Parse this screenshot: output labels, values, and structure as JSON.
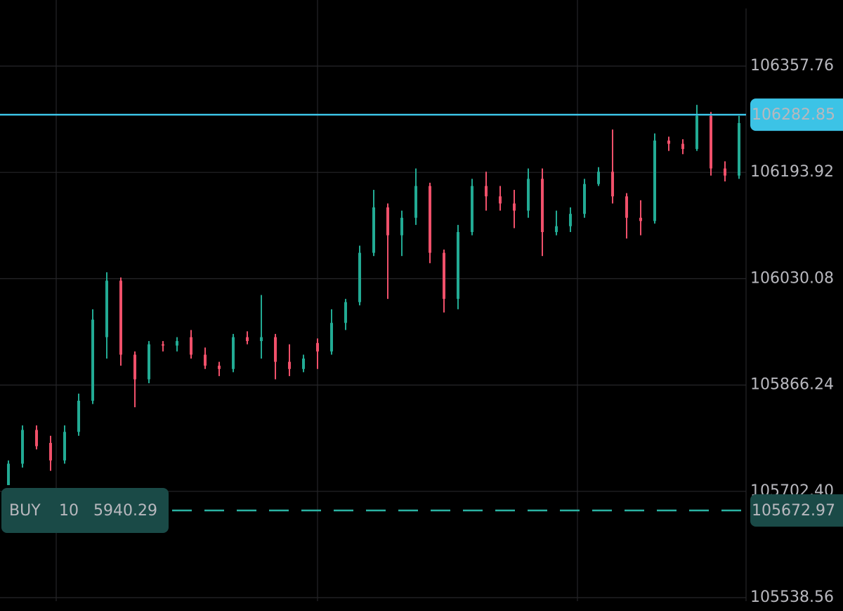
{
  "chart_data": {
    "type": "candlestick",
    "up_color": "#22ab94",
    "down_color": "#f0506a",
    "grid": true,
    "ylim": [
      105517.97,
      106459.62
    ],
    "yticks": [
      106357.76,
      106193.92,
      106030.08,
      105866.24,
      {
        "value": 105702.4,
        "label": "105702.40"
      },
      105538.56
    ],
    "open": [
      105712,
      105745,
      105797,
      105777,
      105750,
      105794,
      105842,
      105940,
      106027,
      105913,
      105875,
      105929,
      105927,
      105940,
      105913,
      105896,
      105891,
      105940,
      105934,
      105940,
      105902,
      105891,
      105931,
      105918,
      105962,
      105994,
      106070,
      106140,
      106097,
      106124,
      106173,
      106070,
      105999,
      106102,
      106173,
      106157,
      106146,
      106135,
      106184,
      106102,
      106111,
      106130,
      106176,
      106195,
      106157,
      106124,
      106119,
      106243,
      106238,
      106230,
      106281,
      106200,
      106189
    ],
    "high": [
      105750,
      105804,
      105804,
      105788,
      105804,
      105853,
      105983,
      106040,
      106032,
      105918,
      105934,
      105934,
      105940,
      105951,
      105924,
      105902,
      105945,
      105949,
      106005,
      105945,
      105929,
      105913,
      105938,
      105983,
      105999,
      106081,
      106167,
      106146,
      106135,
      106200,
      106178,
      106075,
      106113,
      106184,
      106195,
      106173,
      106167,
      106200,
      106200,
      106135,
      106140,
      106184,
      106202,
      106260,
      106162,
      106151,
      106254,
      106249,
      106245,
      106298,
      106287,
      106211,
      106281
    ],
    "low": [
      105712,
      105739,
      105767,
      105734,
      105745,
      105788,
      105837,
      105907,
      105896,
      105832,
      105869,
      105918,
      105918,
      105907,
      105891,
      105880,
      105886,
      105929,
      105907,
      105875,
      105880,
      105886,
      105891,
      105913,
      105951,
      105989,
      106065,
      105999,
      106065,
      106113,
      106054,
      105978,
      105983,
      106097,
      106135,
      106135,
      106108,
      106124,
      106065,
      106097,
      106102,
      106124,
      106173,
      106146,
      106092,
      106097,
      106115,
      106227,
      106222,
      106227,
      106189,
      106180,
      106184
    ],
    "close": [
      105745,
      105797,
      105772,
      105750,
      105794,
      105842,
      105967,
      106027,
      105913,
      105875,
      105929,
      105927,
      105934,
      105913,
      105896,
      105891,
      105940,
      105934,
      105940,
      105902,
      105891,
      105907,
      105918,
      105962,
      105994,
      106070,
      106140,
      106097,
      106124,
      106173,
      106070,
      105999,
      106102,
      106173,
      106157,
      106146,
      106135,
      106184,
      106102,
      106111,
      106130,
      106176,
      106195,
      106157,
      106124,
      106119,
      106243,
      106238,
      106230,
      106281,
      106200,
      106189,
      106270
    ],
    "price_lines": [
      {
        "value": 106282.85,
        "color": "#3cc3e6",
        "style": "solid"
      },
      {
        "value": 105672.97,
        "color": "#2bb3a3",
        "style": "dashed"
      }
    ],
    "order": {
      "side": "BUY",
      "quantity": 10,
      "amount": 5940.29
    }
  }
}
